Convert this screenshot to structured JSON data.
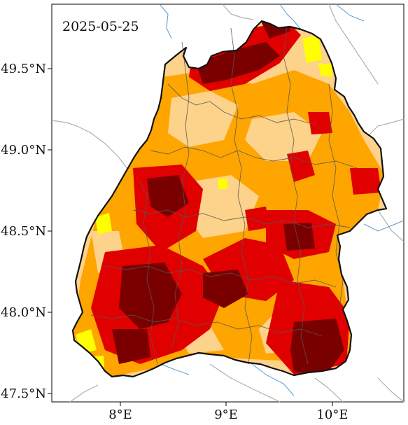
{
  "date_label": "2025-05-25",
  "lat_labels": [
    "49.5°N",
    "49.0°N",
    "48.5°N",
    "48.0°N",
    "47.5°N"
  ],
  "lon_labels": [
    "8°E",
    "9°E",
    "10°E"
  ],
  "palette": {
    "very_dark_red": "#7a0000",
    "red": "#e00000",
    "orange": "#ffa500",
    "light_orange": "#fdd28a",
    "yellow": "#ffff00",
    "border": "#111111",
    "district_lines": "#555555",
    "rivers": "#5b9ccf",
    "neighbor_borders": "#aaaaaa"
  }
}
